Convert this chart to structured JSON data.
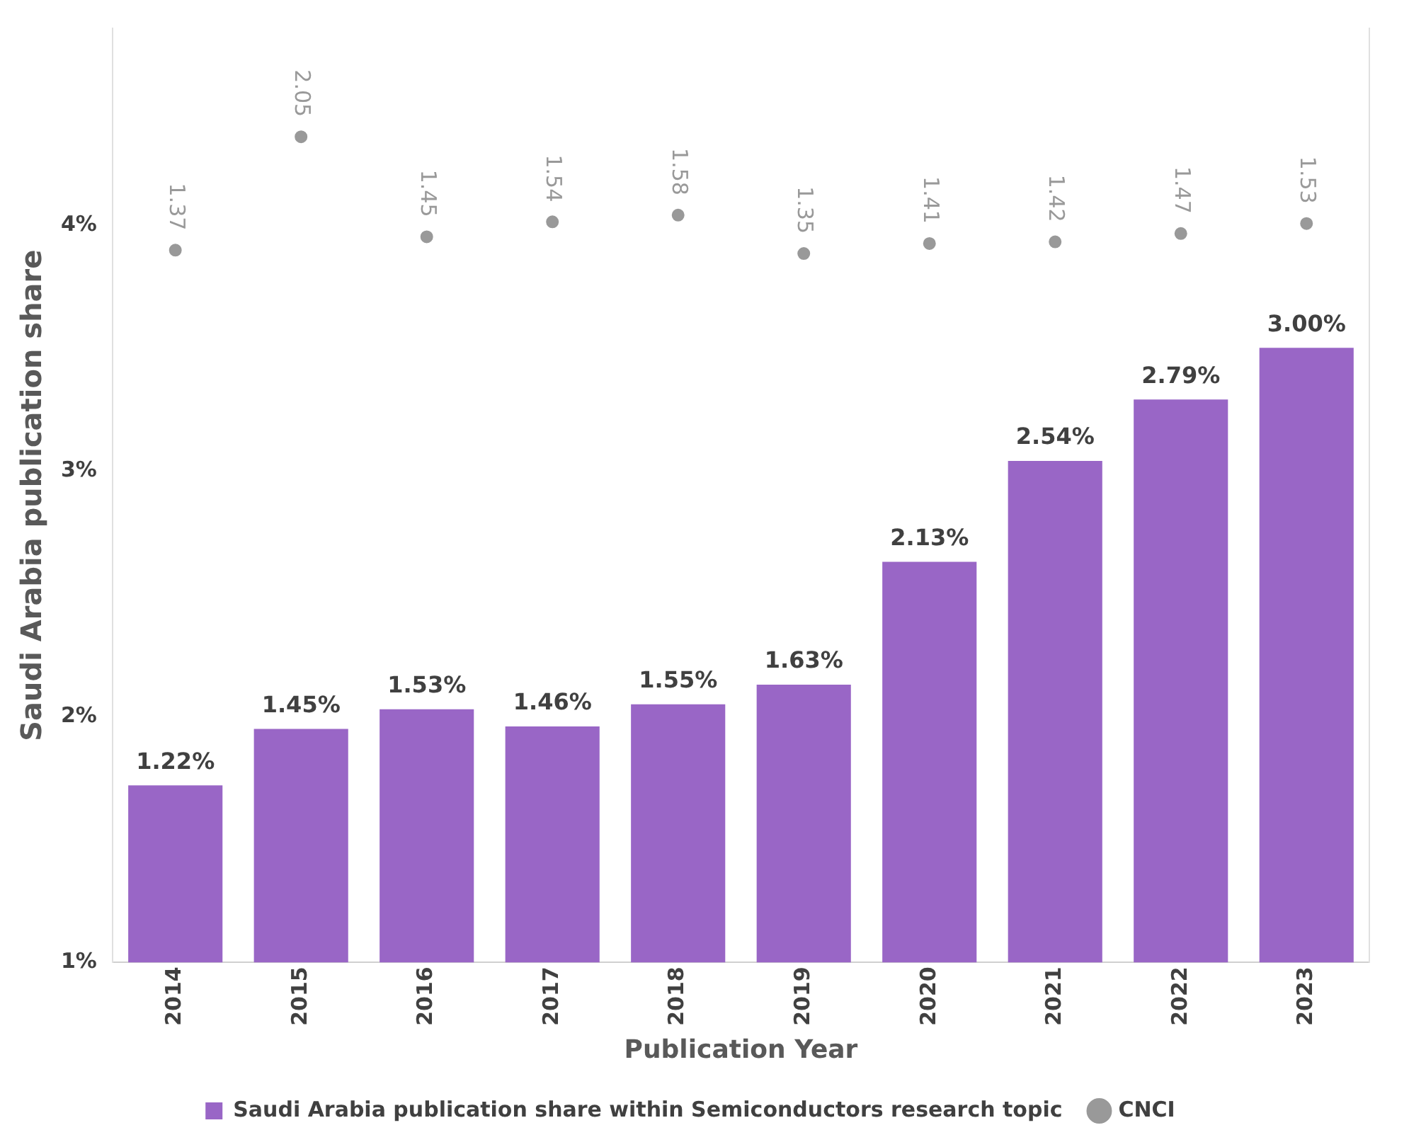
{
  "chart_data": {
    "type": "bar",
    "xlabel": "Publication Year",
    "ylabel": "Saudi Arabia publication share",
    "categories": [
      "2014",
      "2015",
      "2016",
      "2017",
      "2018",
      "2019",
      "2020",
      "2021",
      "2022",
      "2023"
    ],
    "series": [
      {
        "name": "Saudi Arabia publication share within Semiconductors research topic",
        "color": "#9966c6",
        "values": [
          1.22,
          1.45,
          1.53,
          1.46,
          1.55,
          1.63,
          2.13,
          2.54,
          2.79,
          3.0
        ],
        "value_labels": [
          "1.22%",
          "1.45%",
          "1.53%",
          "1.46%",
          "1.55%",
          "1.63%",
          "2.13%",
          "2.54%",
          "2.79%",
          "3.00%"
        ]
      },
      {
        "name": "CNCI",
        "type": "scatter",
        "axis": "y2",
        "color": "#999999",
        "marker": "circle",
        "values": [
          1.37,
          2.05,
          1.45,
          1.54,
          1.58,
          1.35,
          1.41,
          1.42,
          1.47,
          1.53
        ],
        "value_labels": [
          "1.37",
          "2.05",
          "1.45",
          "1.54",
          "1.58",
          "1.35",
          "1.41",
          "1.42",
          "1.47",
          "1.53"
        ]
      }
    ],
    "ylim": [
      0.5,
      4.3
    ],
    "yticks": [
      {
        "value": 0.5,
        "label": "1%"
      },
      {
        "value": 1.5,
        "label": "2%"
      },
      {
        "value": 2.5,
        "label": "3%"
      },
      {
        "value": 3.5,
        "label": "4%"
      }
    ],
    "y2lim": [
      -2.9,
      2.7
    ],
    "grid": false,
    "legend": "bottom"
  }
}
